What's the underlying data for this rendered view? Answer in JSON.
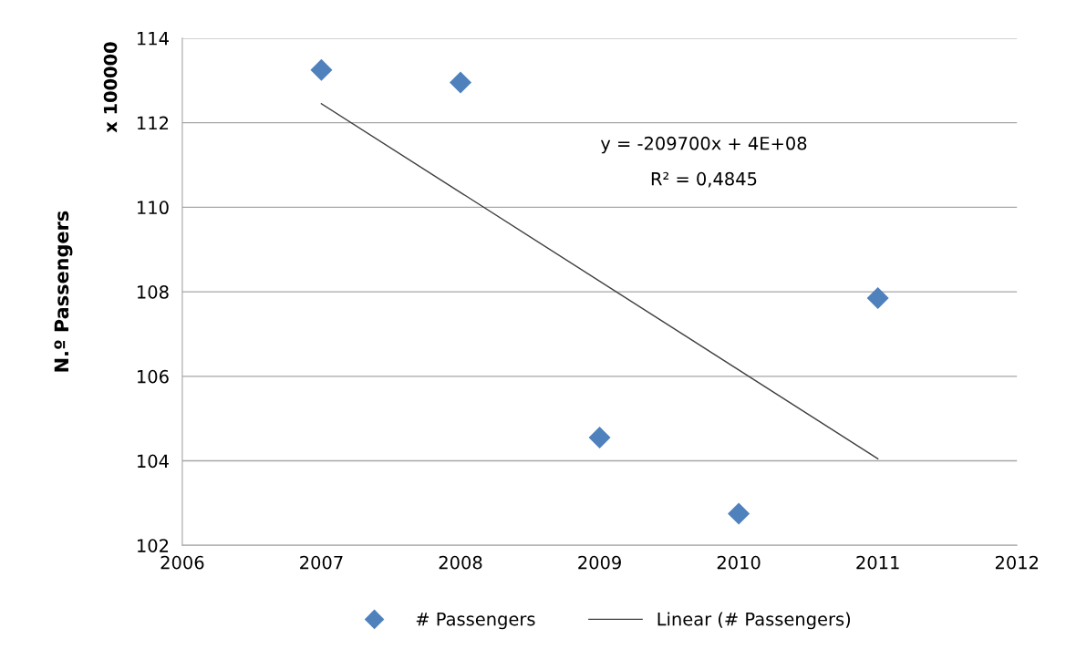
{
  "chart_data": {
    "type": "scatter",
    "ylabel": "N.º Passengers",
    "series": [
      {
        "name": "# Passengers",
        "color": "#4f81bd",
        "marker": "diamond",
        "x": [
          2007,
          2008,
          2009,
          2010,
          2011
        ],
        "values": [
          113.25,
          112.95,
          104.55,
          102.75,
          107.85
        ]
      },
      {
        "name": "Linear (# Passengers)",
        "type": "line",
        "color": "#404040",
        "marker": "none",
        "line_style": "solid",
        "x": [
          2007,
          2011
        ],
        "values": [
          112.45,
          104.05
        ]
      }
    ],
    "annotations": [
      "x 100000",
      "y = -209700x + 4E+08",
      "R² = 0,4845"
    ],
    "xlim": [
      2006,
      2012
    ],
    "xticks": [
      2006,
      2007,
      2008,
      2009,
      2010,
      2011,
      2012
    ],
    "ylim": [
      102,
      114
    ],
    "yticks": [
      102,
      104,
      106,
      108,
      110,
      112,
      114
    ],
    "grid": "y",
    "legend": "bottom"
  }
}
